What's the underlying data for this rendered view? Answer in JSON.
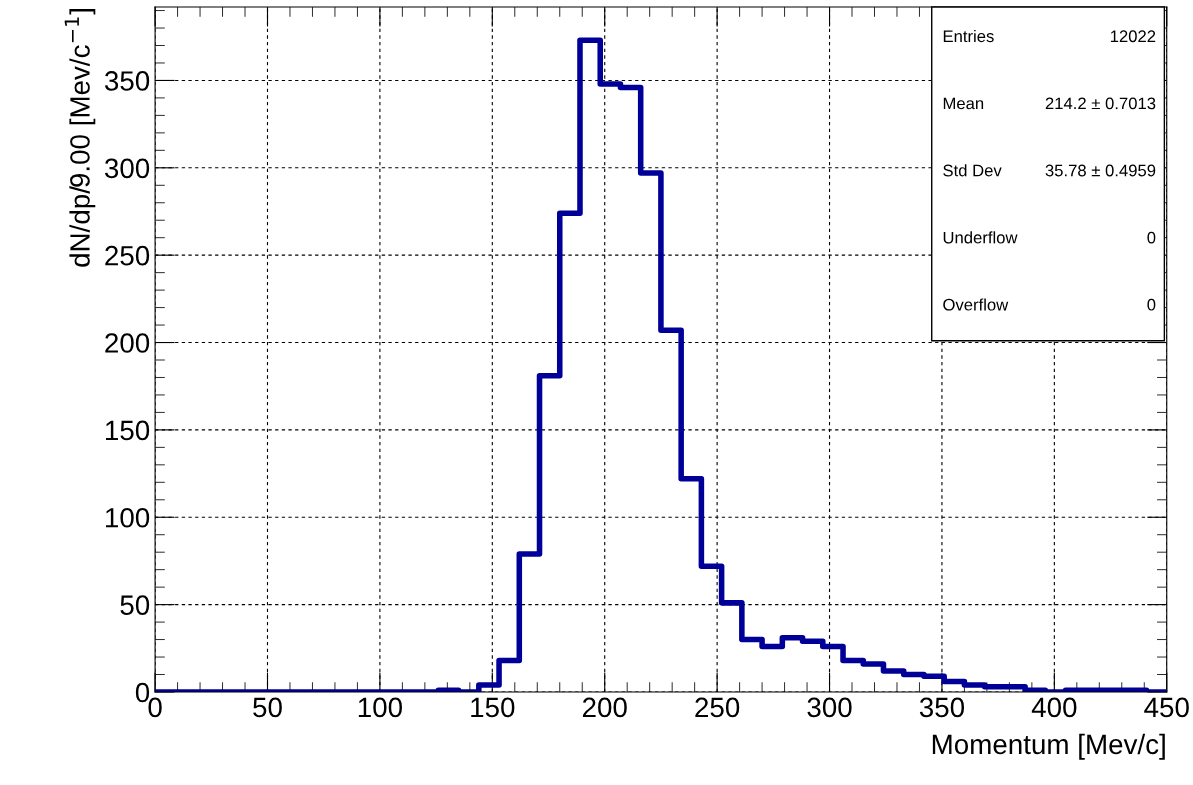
{
  "chart_data": {
    "type": "histogram",
    "xlabel": "Momentum [Mev/c]",
    "ylabel": "dN/dp/9.00 [Mev/c$^{−1}$]",
    "bins": [
      0,
      9,
      18,
      27,
      36,
      45,
      54,
      63,
      72,
      81,
      90,
      99,
      108,
      117,
      126,
      135,
      144,
      153,
      162,
      171,
      180,
      189,
      198,
      207,
      216,
      225,
      234,
      243,
      252,
      261,
      270,
      279,
      288,
      297,
      306,
      315,
      324,
      333,
      342,
      351,
      360,
      369,
      378,
      387,
      396,
      405,
      414,
      423,
      432,
      441,
      450
    ],
    "values": [
      0,
      0,
      0,
      0,
      0,
      0,
      0,
      0,
      0,
      0,
      0,
      0,
      0,
      0,
      1,
      0,
      4,
      18,
      79,
      181,
      274,
      373,
      348,
      346,
      297,
      207,
      122,
      72,
      51,
      30,
      26,
      31,
      29,
      26,
      18,
      16,
      12,
      10,
      9,
      6,
      4,
      3,
      3,
      1,
      0,
      1,
      1,
      1,
      1,
      0
    ],
    "color": "#000099",
    "xlim": [
      0,
      450
    ],
    "xticks": [
      0,
      50,
      100,
      150,
      200,
      250,
      300,
      350,
      400,
      450
    ],
    "ylim": [
      0,
      392
    ],
    "yticks": [
      0,
      50,
      100,
      150,
      200,
      250,
      300,
      350
    ],
    "grid": true,
    "annotations": [
      "Entries",
      "12022",
      "Mean",
      "214.2 ± 0.7013",
      "Std Dev",
      "35.78 ± 0.4959",
      "Underflow",
      "0",
      "Overflow",
      "0"
    ]
  }
}
